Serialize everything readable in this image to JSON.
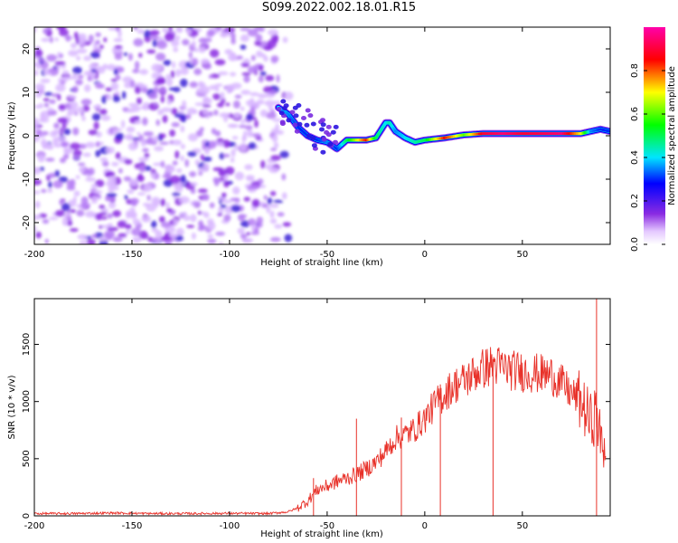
{
  "title": "S099.2022.002.18.01.R15",
  "colors": {
    "snr_line": "#e8322a",
    "axis": "#000000",
    "background": "#ffffff"
  },
  "chart_data": [
    {
      "type": "heatmap",
      "xlabel": "Height of straight line (km)",
      "ylabel": "Frequency (Hz)",
      "xlim": [
        -200,
        95
      ],
      "ylim": [
        -25,
        25
      ],
      "xticks": [
        -200,
        -150,
        -100,
        -50,
        0,
        50
      ],
      "yticks": [
        -20,
        -10,
        0,
        10,
        20
      ],
      "colorbar": {
        "label": "Normalized spectral amplitude",
        "ticks": [
          0.0,
          0.2,
          0.4,
          0.6,
          0.8
        ],
        "range": [
          0,
          1
        ],
        "colormap": "rainbow (white, violet, blue, cyan, green, yellow, red, magenta)"
      },
      "noise_region_x": [
        -200,
        -75
      ],
      "signal_ridge": {
        "x": [
          -75,
          -70,
          -65,
          -60,
          -55,
          -50,
          -45,
          -40,
          -30,
          -25,
          -20,
          -18,
          -15,
          -10,
          -5,
          0,
          10,
          20,
          30,
          40,
          50,
          60,
          70,
          80,
          85,
          90,
          95
        ],
        "frequency": [
          6.5,
          5,
          2,
          0,
          -1,
          -1.5,
          -3,
          -1,
          -1,
          -0.5,
          3,
          3,
          1,
          -0.5,
          -1.5,
          -1,
          -0.5,
          0.2,
          0.5,
          0.5,
          0.5,
          0.5,
          0.5,
          0.5,
          1,
          1.5,
          1
        ],
        "amplitude": [
          0.4,
          0.35,
          0.3,
          0.3,
          0.3,
          0.35,
          0.3,
          0.5,
          0.85,
          0.5,
          0.4,
          0.45,
          0.35,
          0.4,
          0.45,
          0.5,
          0.85,
          0.6,
          0.9,
          0.95,
          0.9,
          0.92,
          0.95,
          0.7,
          0.35,
          0.3,
          0.3
        ]
      }
    },
    {
      "type": "line",
      "xlabel": "Height of straight line (km)",
      "ylabel": "SNR (10 * v/v)",
      "xlim": [
        -200,
        95
      ],
      "ylim": [
        0,
        1900
      ],
      "xticks": [
        -200,
        -150,
        -100,
        -50,
        0,
        50
      ],
      "yticks": [
        0,
        500,
        1000,
        1500
      ],
      "series": [
        {
          "x": [
            -200,
            -180,
            -160,
            -140,
            -120,
            -100,
            -80,
            -70,
            -65,
            -60,
            -55,
            -50,
            -45,
            -40,
            -35,
            -30,
            -25,
            -20,
            -15,
            -10,
            -5,
            0,
            5,
            10,
            15,
            20,
            25,
            30,
            35,
            40,
            45,
            50,
            55,
            60,
            65,
            70,
            75,
            80,
            85,
            88,
            90,
            93
          ],
          "y": [
            20,
            20,
            25,
            20,
            20,
            22,
            20,
            35,
            70,
            130,
            230,
            260,
            300,
            330,
            360,
            410,
            470,
            560,
            680,
            710,
            760,
            850,
            970,
            1060,
            1140,
            1180,
            1240,
            1290,
            1320,
            1300,
            1270,
            1260,
            1250,
            1240,
            1230,
            1160,
            1070,
            1000,
            820,
            900,
            650,
            600
          ],
          "spikes": [
            {
              "x": -57,
              "y": 330
            },
            {
              "x": -35,
              "y": 850
            },
            {
              "x": -12,
              "y": 860
            },
            {
              "x": 8,
              "y": 1150
            },
            {
              "x": 35,
              "y": 1370
            },
            {
              "x": 88,
              "y": 1900
            },
            {
              "x": 90,
              "y": 0
            }
          ]
        }
      ]
    }
  ]
}
